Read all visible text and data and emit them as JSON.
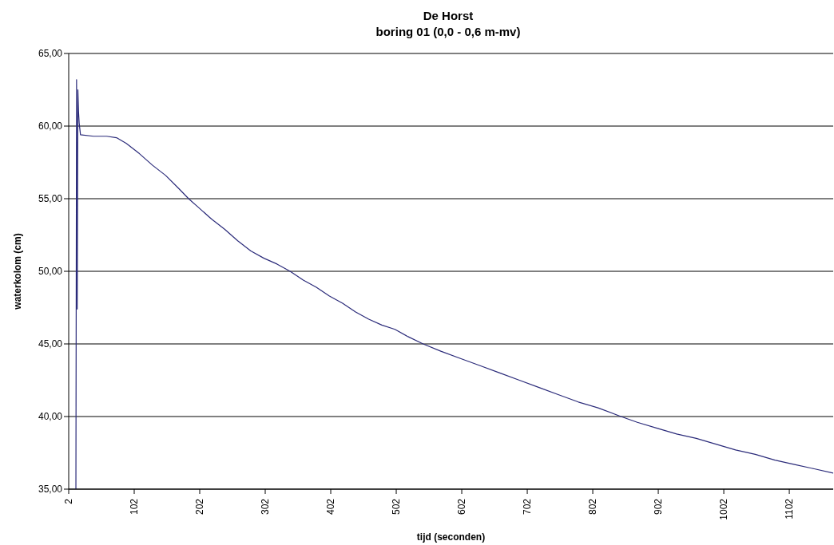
{
  "chart_data": {
    "type": "line",
    "title": "De Horst",
    "subtitle": "boring 01 (0,0 - 0,6 m-mv)",
    "xlabel": "tijd (seconden)",
    "ylabel": "waterkolom (cm)",
    "xlim": [
      2,
      1169
    ],
    "xticks": [
      2,
      102,
      202,
      302,
      402,
      502,
      602,
      702,
      802,
      902,
      1002,
      1102
    ],
    "ylim": [
      35,
      65
    ],
    "yticks": [
      {
        "value": 35,
        "label": "35,00"
      },
      {
        "value": 40,
        "label": "40,00"
      },
      {
        "value": 45,
        "label": "45,00"
      },
      {
        "value": 50,
        "label": "50,00"
      },
      {
        "value": 55,
        "label": "55,00"
      },
      {
        "value": 60,
        "label": "60,00"
      },
      {
        "value": 65,
        "label": "65,00"
      }
    ],
    "grid": "y",
    "marker": "none",
    "line_style": "solid",
    "series": [
      {
        "color": "#2b2b7a",
        "x": [
          13,
          14,
          15,
          16,
          17,
          18,
          20,
          40,
          60,
          75,
          90,
          110,
          130,
          150,
          170,
          185,
          200,
          220,
          240,
          260,
          280,
          300,
          320,
          340,
          360,
          380,
          400,
          420,
          440,
          460,
          480,
          500,
          520,
          543,
          570,
          600,
          630,
          660,
          690,
          720,
          750,
          780,
          810,
          845,
          870,
          900,
          930,
          960,
          990,
          1020,
          1050,
          1080,
          1110,
          1140,
          1169
        ],
        "values": [
          35,
          63.2,
          47.4,
          62.5,
          61,
          60.2,
          59.4,
          59.3,
          59.3,
          59.2,
          58.8,
          58.1,
          57.3,
          56.6,
          55.7,
          55,
          54.4,
          53.6,
          52.9,
          52.1,
          51.4,
          50.9,
          50.5,
          50,
          49.4,
          48.9,
          48.3,
          47.8,
          47.2,
          46.7,
          46.3,
          46,
          45.5,
          45,
          44.5,
          44,
          43.5,
          43,
          42.5,
          42,
          41.5,
          41,
          40.6,
          40,
          39.6,
          39.2,
          38.8,
          38.5,
          38.1,
          37.7,
          37.4,
          37,
          36.7,
          36.4,
          36.1
        ]
      }
    ]
  }
}
